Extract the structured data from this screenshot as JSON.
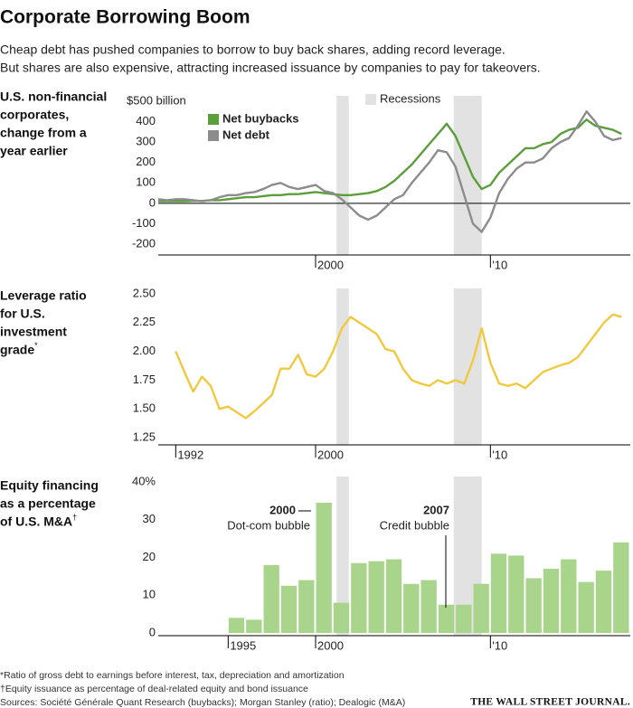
{
  "title": "Corporate Borrowing Boom",
  "subtitle": [
    "Cheap debt has pushed companies to borrow to buy back shares, adding record leverage.",
    "But shares are also expensive, attracting increased issuance by companies to pay for takeovers."
  ],
  "recessions_label": "Recessions",
  "recessions": [
    [
      2001.2,
      2001.9
    ],
    [
      2007.9,
      2009.5
    ]
  ],
  "recession_color": "#e2e2e2",
  "chart_data": [
    {
      "type": "line",
      "label_lines": [
        "U.S. non-financial",
        "corporates,",
        "change from a",
        "year earlier"
      ],
      "xlim": [
        1991,
        2018
      ],
      "xticks": [
        2000,
        {
          "value": 2010,
          "label": "'10"
        }
      ],
      "ylim": [
        -200,
        500
      ],
      "yticks": [
        {
          "value": 500,
          "label": "$500 billion"
        },
        400,
        300,
        200,
        100,
        0,
        -100,
        -200
      ],
      "zero_line": true,
      "x": [
        1991,
        1991.5,
        1992,
        1992.5,
        1993,
        1993.5,
        1994,
        1994.5,
        1995,
        1995.5,
        1996,
        1996.5,
        1997,
        1997.5,
        1998,
        1998.5,
        1999,
        1999.5,
        2000,
        2000.5,
        2001,
        2001.5,
        2002,
        2002.5,
        2003,
        2003.5,
        2004,
        2004.5,
        2005,
        2005.5,
        2006,
        2006.5,
        2007,
        2007.5,
        2008,
        2008.5,
        2009,
        2009.5,
        2010,
        2010.5,
        2011,
        2011.5,
        2012,
        2012.5,
        2013,
        2013.5,
        2014,
        2014.5,
        2015,
        2015.5,
        2016,
        2016.5,
        2017,
        2017.5
      ],
      "series": [
        {
          "name": "Net buybacks",
          "color": "#5b9e3c",
          "values": [
            10,
            10,
            10,
            10,
            12,
            12,
            15,
            15,
            20,
            25,
            30,
            30,
            35,
            40,
            40,
            45,
            45,
            50,
            55,
            50,
            45,
            40,
            40,
            45,
            50,
            60,
            80,
            110,
            150,
            190,
            240,
            290,
            340,
            390,
            330,
            230,
            130,
            70,
            90,
            150,
            190,
            230,
            270,
            270,
            290,
            300,
            340,
            360,
            370,
            410,
            380,
            370,
            360,
            340
          ]
        },
        {
          "name": "Net debt",
          "color": "#8c8c8c",
          "values": [
            20,
            15,
            20,
            20,
            15,
            10,
            15,
            30,
            40,
            40,
            50,
            55,
            70,
            90,
            100,
            80,
            70,
            80,
            90,
            60,
            50,
            20,
            -20,
            -60,
            -80,
            -60,
            -20,
            20,
            40,
            100,
            150,
            200,
            260,
            250,
            180,
            40,
            -100,
            -140,
            -70,
            50,
            120,
            170,
            200,
            200,
            220,
            270,
            300,
            320,
            380,
            450,
            400,
            330,
            310,
            320
          ]
        }
      ]
    },
    {
      "type": "line",
      "label_lines": [
        "Leverage ratio",
        "for U.S.",
        "investment",
        "grade"
      ],
      "label_mark": "*",
      "xlim": [
        1991,
        2018
      ],
      "xticks": [
        1992,
        2000,
        {
          "value": 2010,
          "label": "'10"
        }
      ],
      "ylim": [
        1.25,
        2.5
      ],
      "yticks": [
        {
          "value": 2.5,
          "label": "2.50"
        },
        2.25,
        {
          "value": 2,
          "label": "2.00"
        },
        1.75,
        {
          "value": 1.5,
          "label": "1.50"
        },
        1.25
      ],
      "x": [
        1992,
        1992.5,
        1993,
        1993.5,
        1994,
        1994.5,
        1995,
        1995.5,
        1996,
        1996.5,
        1997,
        1997.5,
        1998,
        1998.5,
        1999,
        1999.5,
        2000,
        2000.5,
        2001,
        2001.5,
        2002,
        2002.5,
        2003,
        2003.5,
        2004,
        2004.5,
        2005,
        2005.5,
        2006,
        2006.5,
        2007,
        2007.5,
        2008,
        2008.5,
        2009,
        2009.5,
        2010,
        2010.5,
        2011,
        2011.5,
        2012,
        2012.5,
        2013,
        2013.5,
        2014,
        2014.5,
        2015,
        2015.5,
        2016,
        2016.5,
        2017,
        2017.5
      ],
      "series": [
        {
          "color": "#f0c93e",
          "values": [
            2.0,
            1.82,
            1.65,
            1.78,
            1.7,
            1.5,
            1.52,
            1.47,
            1.42,
            1.48,
            1.55,
            1.62,
            1.85,
            1.85,
            1.97,
            1.8,
            1.78,
            1.85,
            2.0,
            2.2,
            2.3,
            2.25,
            2.2,
            2.15,
            2.02,
            2.0,
            1.85,
            1.75,
            1.72,
            1.7,
            1.75,
            1.72,
            1.75,
            1.72,
            1.92,
            2.2,
            1.9,
            1.72,
            1.7,
            1.72,
            1.68,
            1.75,
            1.82,
            1.85,
            1.88,
            1.9,
            1.95,
            2.05,
            2.15,
            2.25,
            2.32,
            2.3
          ]
        }
      ]
    },
    {
      "type": "bar",
      "label_lines": [
        "Equity financing",
        "as a percentage",
        "of U.S. M&A"
      ],
      "label_mark": "†",
      "xlim": [
        1991,
        2018
      ],
      "xticks": [
        1995,
        2000,
        {
          "value": 2010,
          "label": "'10"
        }
      ],
      "ylim": [
        0,
        40
      ],
      "yticks": [
        {
          "value": 40,
          "label": "40%"
        },
        30,
        20,
        10,
        0
      ],
      "color": "#a9d48c",
      "x": [
        1995,
        1996,
        1997,
        1998,
        1999,
        2000,
        2001,
        2002,
        2003,
        2004,
        2005,
        2006,
        2007,
        2008,
        2009,
        2010,
        2011,
        2012,
        2013,
        2014,
        2015,
        2016,
        2017
      ],
      "values": [
        4,
        3.5,
        18,
        12.5,
        14,
        34.5,
        8,
        18.5,
        19,
        19.5,
        13,
        14,
        7.5,
        7.5,
        13,
        21,
        20.5,
        14.5,
        17,
        19.5,
        13.5,
        16.5,
        24
      ],
      "annotations": [
        {
          "title": "2000",
          "text": "Dot-com bubble"
        },
        {
          "title": "2007",
          "text": "Credit bubble"
        }
      ]
    }
  ],
  "footnotes": [
    "*Ratio of gross debt to earnings before interest, tax, depreciation and amortization",
    "†Equity issuance as percentage of deal-related equity and bond issuance",
    "Sources: Société Générale Quant Research (buybacks); Morgan Stanley (ratio); Dealogic (M&A)"
  ],
  "brand": "THE WALL STREET JOURNAL."
}
